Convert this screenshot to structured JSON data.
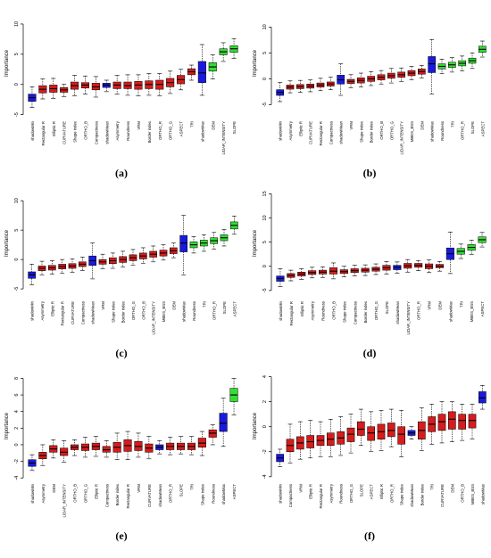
{
  "chart_data": [
    {
      "type": "boxplot",
      "panel_label": "(a)",
      "ylabel": "Importance",
      "ylim": [
        -5.5,
        12.5
      ],
      "yticks": [
        -5,
        0,
        5,
        10
      ],
      "categories": [
        "shadowMin",
        "Rectangular R",
        "Elliptic R",
        "CURVATURE",
        "Shape index",
        "ORTHO_B",
        "Compactness",
        "shadowMean",
        "Asymmetry",
        "Roundness",
        "VRM",
        "Border index",
        "ORTHO_R",
        "ORTHO_G",
        "ASPECT",
        "TRI",
        "shadowMax",
        "DEM",
        "LIDAR_INTENSITY",
        "SLOPE"
      ],
      "colors": [
        "blue",
        "red",
        "red",
        "red",
        "red",
        "red",
        "red",
        "blue",
        "red",
        "red",
        "red",
        "red",
        "red",
        "red",
        "red",
        "red",
        "blue",
        "green",
        "green",
        "green"
      ],
      "median": [
        -2.2,
        -0.8,
        -0.7,
        -0.9,
        -0.2,
        -0.1,
        -0.4,
        -0.1,
        -0.1,
        -0.2,
        -0.1,
        0.0,
        0.0,
        0.3,
        0.8,
        2.1,
        1.9,
        2.9,
        5.4,
        5.9
      ],
      "q1": [
        -2.8,
        -1.4,
        -1.3,
        -1.3,
        -0.8,
        -0.6,
        -0.9,
        -0.5,
        -0.7,
        -0.7,
        -0.8,
        -0.7,
        -0.8,
        -0.4,
        0.1,
        1.6,
        0.3,
        2.2,
        4.9,
        5.3
      ],
      "q3": [
        -1.6,
        -0.2,
        -0.1,
        -0.5,
        0.4,
        0.3,
        0.2,
        0.2,
        0.4,
        0.4,
        0.5,
        0.6,
        0.7,
        1.0,
        1.5,
        2.6,
        3.8,
        3.6,
        5.9,
        6.4
      ],
      "whisker_low": [
        -3.8,
        -2.4,
        -2.3,
        -2.0,
        -1.9,
        -1.6,
        -2.1,
        -1.2,
        -1.6,
        -1.8,
        -1.9,
        -1.8,
        -1.9,
        -1.5,
        -0.9,
        0.7,
        -1.8,
        0.9,
        3.8,
        4.3
      ],
      "whisker_high": [
        -0.4,
        0.9,
        1.0,
        0.0,
        1.5,
        1.4,
        1.3,
        0.7,
        1.5,
        1.6,
        1.6,
        1.8,
        1.8,
        2.2,
        2.5,
        3.2,
        6.6,
        4.9,
        6.9,
        7.6
      ]
    },
    {
      "type": "boxplot",
      "panel_label": "(b)",
      "ylabel": "Importance",
      "ylim": [
        -7.5,
        13.5
      ],
      "yticks": [
        -5,
        0,
        5,
        10
      ],
      "categories": [
        "shadowMin",
        "Asymmetry",
        "Elliptic R",
        "CURVATURE",
        "Rectangular R",
        "Compactness",
        "shadowMean",
        "VRM",
        "Shape index",
        "Border index",
        "ORTHO_B",
        "ORTHO_G",
        "LIDAR_INTENSITY",
        "MBES_BSS",
        "DEM",
        "shadowMax",
        "Roundness",
        "TRI",
        "ORTHO_R",
        "SLOPE",
        "ASPECT"
      ],
      "colors": [
        "blue",
        "red",
        "red",
        "red",
        "red",
        "red",
        "blue",
        "red",
        "red",
        "red",
        "red",
        "red",
        "red",
        "red",
        "red",
        "blue",
        "green",
        "green",
        "green",
        "green",
        "green"
      ],
      "median": [
        -2.6,
        -1.6,
        -1.5,
        -1.4,
        -1.2,
        -1.0,
        -0.2,
        -0.5,
        -0.3,
        0.0,
        0.3,
        0.6,
        0.8,
        1.1,
        1.4,
        2.9,
        2.4,
        2.7,
        3.0,
        3.5,
        5.7
      ],
      "q1": [
        -3.2,
        -2.0,
        -1.9,
        -1.8,
        -1.6,
        -1.4,
        -1.0,
        -0.9,
        -0.8,
        -0.5,
        -0.2,
        0.1,
        0.3,
        0.6,
        0.9,
        1.2,
        1.9,
        2.2,
        2.5,
        3.0,
        5.1
      ],
      "q3": [
        -2.1,
        -1.2,
        -1.1,
        -1.0,
        -0.8,
        -0.6,
        0.7,
        -0.1,
        0.2,
        0.5,
        0.8,
        1.1,
        1.3,
        1.6,
        1.9,
        4.3,
        2.9,
        3.2,
        3.5,
        4.0,
        6.3
      ],
      "whisker_low": [
        -4.4,
        -2.7,
        -2.6,
        -2.5,
        -2.3,
        -2.1,
        -3.2,
        -1.7,
        -1.6,
        -1.3,
        -1.0,
        -0.8,
        -0.5,
        -0.2,
        0.2,
        -2.9,
        1.0,
        1.3,
        1.5,
        2.0,
        4.2
      ],
      "whisker_high": [
        -0.7,
        -0.4,
        -0.3,
        -0.2,
        0.1,
        0.3,
        2.9,
        0.8,
        1.1,
        1.4,
        1.6,
        2.0,
        2.1,
        2.4,
        2.6,
        7.6,
        3.8,
        4.1,
        4.4,
        5.0,
        7.3
      ]
    },
    {
      "type": "boxplot",
      "panel_label": "(c)",
      "ylabel": "Importance",
      "ylim": [
        -6.5,
        12.0
      ],
      "yticks": [
        -5,
        0,
        5,
        10
      ],
      "categories": [
        "shadowMin",
        "Asymmetry",
        "Elliptic R",
        "Rectangular R",
        "CURVATURE",
        "Compactness",
        "shadowMean",
        "VRM",
        "Shape index",
        "Border index",
        "ORTHO_G",
        "ORTHO_B",
        "LIDAR_INTENSITY",
        "MBES_BSS",
        "DEM",
        "shadowMax",
        "Roundness",
        "TRI",
        "ORTHO_R",
        "SLOPE",
        "ASPECT"
      ],
      "colors": [
        "blue",
        "red",
        "red",
        "red",
        "red",
        "red",
        "blue",
        "red",
        "red",
        "red",
        "red",
        "red",
        "red",
        "red",
        "red",
        "blue",
        "green",
        "green",
        "green",
        "green",
        "green"
      ],
      "median": [
        -2.6,
        -1.5,
        -1.4,
        -1.2,
        -1.1,
        -0.8,
        -0.2,
        -0.4,
        -0.2,
        0.0,
        0.3,
        0.6,
        0.9,
        1.1,
        1.5,
        2.8,
        2.5,
        2.8,
        3.2,
        3.7,
        5.8
      ],
      "q1": [
        -3.2,
        -1.9,
        -1.8,
        -1.6,
        -1.5,
        -1.2,
        -1.0,
        -0.8,
        -0.7,
        -0.5,
        -0.2,
        0.1,
        0.4,
        0.6,
        1.0,
        1.3,
        2.0,
        2.3,
        2.7,
        3.2,
        5.2
      ],
      "q3": [
        -2.1,
        -1.1,
        -1.0,
        -0.8,
        -0.7,
        -0.4,
        0.6,
        0.0,
        0.3,
        0.5,
        0.8,
        1.1,
        1.4,
        1.6,
        2.0,
        4.1,
        3.0,
        3.3,
        3.7,
        4.2,
        6.4
      ],
      "whisker_low": [
        -4.3,
        -2.6,
        -2.5,
        -2.3,
        -2.2,
        -1.9,
        -3.3,
        -1.6,
        -1.5,
        -1.3,
        -1.0,
        -0.7,
        -0.4,
        -0.1,
        0.3,
        -2.6,
        1.1,
        1.4,
        1.8,
        2.3,
        4.3
      ],
      "whisker_high": [
        -0.8,
        -0.3,
        -0.2,
        0.0,
        0.1,
        0.4,
        2.8,
        0.9,
        1.1,
        1.4,
        1.7,
        2.0,
        2.3,
        2.5,
        2.8,
        7.5,
        3.9,
        4.2,
        4.6,
        5.1,
        7.4
      ]
    },
    {
      "type": "boxplot",
      "panel_label": "(d)",
      "ylabel": "Importance",
      "ylim": [
        -6.5,
        16.0
      ],
      "yticks": [
        -5,
        0,
        5,
        10,
        15
      ],
      "categories": [
        "shadowMin",
        "Rectangular R",
        "Elliptic R",
        "Asymmetry",
        "Roundness",
        "ORTHO_B",
        "Shape index",
        "Compactness",
        "Border index",
        "ORTHO_G",
        "SLOPE",
        "shadowMean",
        "LIDAR_INTENSITY",
        "ORTHO_R",
        "VRM",
        "DEM",
        "shadowMax",
        "TRI",
        "MBES_BSS",
        "ASPECT"
      ],
      "colors": [
        "blue",
        "red",
        "red",
        "red",
        "red",
        "red",
        "red",
        "red",
        "red",
        "red",
        "red",
        "blue",
        "red",
        "red",
        "red",
        "red",
        "blue",
        "green",
        "green",
        "green"
      ],
      "median": [
        -2.5,
        -1.9,
        -1.6,
        -1.3,
        -1.2,
        -1.0,
        -1.1,
        -0.9,
        -0.8,
        -0.6,
        -0.3,
        -0.2,
        0.1,
        0.2,
        0.0,
        0.0,
        2.6,
        3.1,
        3.9,
        5.5
      ],
      "q1": [
        -3.1,
        -2.3,
        -2.0,
        -1.7,
        -1.6,
        -1.6,
        -1.5,
        -1.3,
        -1.2,
        -1.0,
        -0.8,
        -0.7,
        -0.4,
        -0.2,
        -0.5,
        -0.3,
        1.4,
        2.5,
        3.3,
        4.9
      ],
      "q3": [
        -2.0,
        -1.5,
        -1.2,
        -0.9,
        -0.8,
        -0.3,
        -0.7,
        -0.5,
        -0.4,
        -0.2,
        0.2,
        0.2,
        0.6,
        0.6,
        0.5,
        0.4,
        3.8,
        3.7,
        4.5,
        6.1
      ],
      "whisker_low": [
        -4.2,
        -3.0,
        -2.7,
        -2.4,
        -2.3,
        -2.6,
        -2.2,
        -2.0,
        -1.9,
        -1.7,
        -1.6,
        -1.4,
        -1.2,
        -0.9,
        -1.3,
        -1.0,
        -1.5,
        1.6,
        2.4,
        4.0
      ],
      "whisker_high": [
        -0.5,
        -0.8,
        -0.5,
        -0.2,
        -0.1,
        0.7,
        0.0,
        0.2,
        0.3,
        0.5,
        1.0,
        0.9,
        1.4,
        1.2,
        1.3,
        1.0,
        7.1,
        4.6,
        5.4,
        7.0
      ]
    },
    {
      "type": "boxplot",
      "panel_label": "(e)",
      "ylabel": "Importance",
      "ylim": [
        -4.3,
        8.8
      ],
      "yticks": [
        -4,
        -2,
        0,
        2,
        4,
        6,
        8
      ],
      "categories": [
        "shadowMin",
        "Asymmetry",
        "DEM",
        "LIDAR_INTENSITY",
        "ORTHO_B",
        "ORTHO_G",
        "Elliptic R",
        "Compactness",
        "Border index",
        "Rectangular R",
        "VRM",
        "CURVATURE",
        "shadowMean",
        "ORTHO_R",
        "SLOPE",
        "TRI",
        "Shape index",
        "Roundness",
        "shadowMax",
        "ASPECT"
      ],
      "colors": [
        "blue",
        "red",
        "red",
        "red",
        "red",
        "red",
        "red",
        "red",
        "red",
        "red",
        "red",
        "red",
        "blue",
        "red",
        "red",
        "red",
        "red",
        "red",
        "blue",
        "green"
      ],
      "median": [
        -2.2,
        -1.3,
        -0.5,
        -0.9,
        -0.3,
        -0.3,
        -0.2,
        -0.6,
        -0.3,
        -0.1,
        -0.2,
        -0.4,
        -0.3,
        -0.2,
        -0.2,
        -0.2,
        0.2,
        1.4,
        2.6,
        6.0
      ],
      "q1": [
        -2.6,
        -1.7,
        -0.9,
        -1.3,
        -0.6,
        -0.7,
        -0.6,
        -0.9,
        -0.9,
        -0.8,
        -0.7,
        -0.9,
        -0.6,
        -0.6,
        -0.6,
        -0.6,
        -0.3,
        0.9,
        1.6,
        5.2
      ],
      "q3": [
        -1.8,
        -0.9,
        -0.1,
        -0.4,
        0.0,
        0.1,
        0.2,
        -0.2,
        0.3,
        0.6,
        0.4,
        0.1,
        0.0,
        0.2,
        0.2,
        0.2,
        0.8,
        1.8,
        3.8,
        6.8
      ],
      "whisker_low": [
        -3.1,
        -2.5,
        -1.6,
        -2.1,
        -1.3,
        -1.5,
        -1.4,
        -1.5,
        -1.8,
        -1.8,
        -1.5,
        -1.7,
        -1.1,
        -1.2,
        -1.1,
        -1.2,
        -1.3,
        0.0,
        -0.2,
        3.6
      ],
      "whisker_high": [
        -1.2,
        0.0,
        0.6,
        0.5,
        0.6,
        0.9,
        1.0,
        0.5,
        1.4,
        1.6,
        1.4,
        1.0,
        0.5,
        0.9,
        1.0,
        1.0,
        1.6,
        2.4,
        5.6,
        8.0
      ]
    },
    {
      "type": "boxplot",
      "panel_label": "(f)",
      "ylabel": "Importance",
      "ylim": [
        -4.3,
        4.4
      ],
      "yticks": [
        -4,
        -2,
        0,
        2,
        4
      ],
      "categories": [
        "shadowMin",
        "Compactness",
        "VRM",
        "Elliptic R",
        "Rectangular R",
        "Asymmetry",
        "Roundness",
        "ORTHO_G",
        "SLOPE",
        "ASPECT",
        "Elliptic R",
        "ORTHO_R",
        "Shape index",
        "shadowMean",
        "Border index",
        "TRI",
        "CURVATURE",
        "DEM",
        "ORTHO_B",
        "MBES_BSS",
        "shadowMax"
      ],
      "colors": [
        "blue",
        "red",
        "red",
        "red",
        "red",
        "red",
        "red",
        "red",
        "red",
        "red",
        "red",
        "red",
        "red",
        "blue",
        "red",
        "red",
        "red",
        "red",
        "red",
        "red",
        "blue"
      ],
      "median": [
        -2.5,
        -1.5,
        -1.3,
        -1.2,
        -1.1,
        -1.0,
        -0.9,
        -0.6,
        -0.2,
        -0.5,
        -0.4,
        -0.3,
        -0.6,
        -0.5,
        -0.3,
        0.2,
        0.4,
        0.6,
        0.5,
        0.5,
        2.3
      ],
      "q1": [
        -2.8,
        -2.0,
        -1.8,
        -1.7,
        -1.5,
        -1.5,
        -1.4,
        -1.2,
        -0.7,
        -1.1,
        -1.0,
        -0.8,
        -1.4,
        -0.7,
        -1.0,
        -0.4,
        -0.3,
        -0.2,
        -0.2,
        -0.1,
        1.9
      ],
      "q3": [
        -2.2,
        -1.0,
        -0.8,
        -0.7,
        -0.7,
        -0.5,
        -0.4,
        -0.1,
        0.4,
        0.0,
        0.2,
        0.3,
        0.0,
        -0.3,
        0.4,
        0.8,
        1.0,
        1.2,
        1.0,
        1.0,
        2.8
      ],
      "whisker_low": [
        -3.2,
        -2.9,
        -2.6,
        -2.5,
        -2.4,
        -2.4,
        -2.3,
        -2.1,
        -1.5,
        -2.0,
        -1.9,
        -1.6,
        -2.4,
        -1.0,
        -1.9,
        -1.4,
        -1.3,
        -1.2,
        -1.1,
        -1.0,
        1.4
      ],
      "whisker_high": [
        -1.8,
        0.2,
        0.4,
        0.5,
        0.4,
        0.6,
        0.8,
        1.0,
        1.4,
        1.2,
        1.3,
        1.4,
        1.3,
        0.0,
        1.5,
        1.8,
        2.0,
        2.0,
        1.8,
        1.8,
        3.3
      ]
    }
  ]
}
